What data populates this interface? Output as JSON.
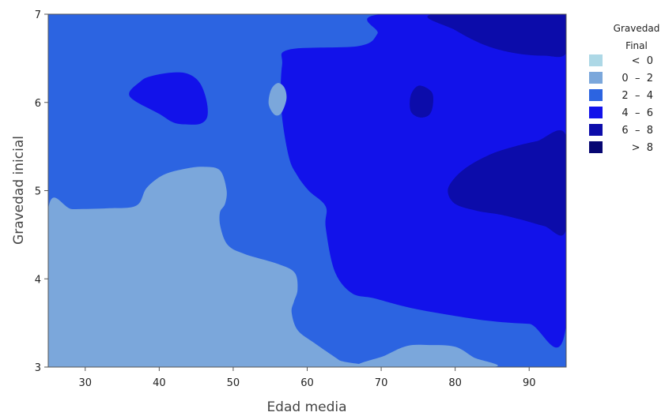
{
  "chart_data": {
    "type": "contour",
    "xlabel": "Edad media",
    "ylabel": "Gravedad inicial",
    "xlim": [
      25,
      95
    ],
    "ylim": [
      3,
      7
    ],
    "x_ticks": [
      "30",
      "40",
      "50",
      "60",
      "70",
      "80",
      "90"
    ],
    "y_ticks": [
      "3",
      "4",
      "5",
      "6",
      "7"
    ],
    "legend": {
      "title_lines": [
        "Gravedad",
        "Final"
      ],
      "placement": "right",
      "entries": [
        {
          "label": "<  0",
          "color": "#add8e6"
        },
        {
          "label": "0  –  2",
          "color": "#7ba7db"
        },
        {
          "label": "2  –  4",
          "color": "#2c64e1"
        },
        {
          "label": "4  –  6",
          "color": "#1212ea"
        },
        {
          "label": "6  –  8",
          "color": "#0c0caa"
        },
        {
          "label": ">  8",
          "color": "#060672"
        }
      ]
    },
    "regions": [
      {
        "level": "2 – 4",
        "color": "#2c64e1",
        "points": [
          [
            25,
            3
          ],
          [
            95,
            3
          ],
          [
            95,
            7
          ],
          [
            25,
            7
          ]
        ]
      },
      {
        "level": "4 – 6",
        "color": "#1212ea",
        "points": [
          [
            70,
            7
          ],
          [
            95,
            7
          ],
          [
            95,
            3.48
          ],
          [
            90,
            3.49
          ],
          [
            85,
            3.52
          ],
          [
            80,
            3.58
          ],
          [
            74,
            3.67
          ],
          [
            69,
            3.78
          ],
          [
            66,
            3.84
          ],
          [
            63.7,
            4.09
          ],
          [
            62.5,
            4.58
          ],
          [
            62.5,
            4.82
          ],
          [
            60.2,
            5
          ],
          [
            58.6,
            5.18
          ],
          [
            57.5,
            5.39
          ],
          [
            56.5,
            5.92
          ],
          [
            56.6,
            6.42
          ],
          [
            57.6,
            6.6
          ],
          [
            67,
            6.64
          ],
          [
            69.5,
            6.78
          ]
        ]
      },
      {
        "level": "4 – 6",
        "color": "#1212ea",
        "points": [
          [
            36,
            6.07
          ],
          [
            37.5,
            6.24
          ],
          [
            39,
            6.3
          ],
          [
            42,
            6.34
          ],
          [
            44,
            6.32
          ],
          [
            45.5,
            6.22
          ],
          [
            46.4,
            6.02
          ],
          [
            46.5,
            5.84
          ],
          [
            45.6,
            5.76
          ],
          [
            44,
            5.75
          ],
          [
            42,
            5.77
          ],
          [
            40,
            5.87
          ]
        ]
      },
      {
        "level": "6 – 8",
        "color": "#0c0caa",
        "points": [
          [
            77,
            7
          ],
          [
            95,
            7
          ],
          [
            95,
            6.56
          ],
          [
            92,
            6.53
          ],
          [
            88,
            6.56
          ],
          [
            84,
            6.65
          ],
          [
            80,
            6.82
          ]
        ]
      },
      {
        "level": "6 – 8",
        "color": "#0c0caa",
        "points": [
          [
            79,
            5
          ],
          [
            80,
            5.15
          ],
          [
            82,
            5.29
          ],
          [
            85,
            5.42
          ],
          [
            88,
            5.5
          ],
          [
            91,
            5.56
          ],
          [
            95,
            5.62
          ],
          [
            95,
            4.56
          ],
          [
            92,
            4.6
          ],
          [
            89,
            4.67
          ],
          [
            86,
            4.73
          ],
          [
            83,
            4.77
          ],
          [
            80,
            4.85
          ]
        ]
      },
      {
        "level": "6 – 8",
        "color": "#0c0caa",
        "points": [
          [
            75.1,
            6.19
          ],
          [
            76.8,
            6.12
          ],
          [
            77,
            5.98
          ],
          [
            76.5,
            5.86
          ],
          [
            75.2,
            5.83
          ],
          [
            74,
            5.9
          ],
          [
            74,
            6.08
          ]
        ]
      },
      {
        "level": "0 – 2",
        "color": "#7ba7db",
        "points": [
          [
            25,
            3
          ],
          [
            25,
            4.79
          ],
          [
            28.3,
            4.79
          ],
          [
            33,
            4.8
          ],
          [
            36.9,
            4.83
          ],
          [
            38.3,
            5.03
          ],
          [
            40.6,
            5.18
          ],
          [
            43.6,
            5.25
          ],
          [
            46,
            5.27
          ],
          [
            48.2,
            5.23
          ],
          [
            49.1,
            5.01
          ],
          [
            48.9,
            4.85
          ],
          [
            48.2,
            4.75
          ],
          [
            48.3,
            4.58
          ],
          [
            49.3,
            4.38
          ],
          [
            51.6,
            4.28
          ],
          [
            56,
            4.17
          ],
          [
            58.3,
            4.07
          ],
          [
            58.7,
            3.88
          ],
          [
            58.2,
            3.74
          ],
          [
            57.9,
            3.62
          ],
          [
            58.7,
            3.42
          ],
          [
            61,
            3.27
          ],
          [
            64.3,
            3.08
          ],
          [
            65.6,
            3
          ]
        ]
      },
      {
        "level": "0 – 2",
        "color": "#7ba7db",
        "points": [
          [
            67.5,
            3
          ],
          [
            85,
            3
          ],
          [
            82.5,
            3.11
          ],
          [
            80,
            3.23
          ],
          [
            76.5,
            3.25
          ],
          [
            73.5,
            3.24
          ],
          [
            70.5,
            3.13
          ]
        ]
      },
      {
        "level": "0 – 2",
        "color": "#7ba7db",
        "points": [
          [
            54.8,
            5.98
          ],
          [
            55.6,
            5.86
          ],
          [
            56.5,
            5.88
          ],
          [
            57.2,
            6.04
          ],
          [
            56.9,
            6.17
          ],
          [
            56,
            6.22
          ],
          [
            55.1,
            6.14
          ]
        ]
      }
    ]
  }
}
